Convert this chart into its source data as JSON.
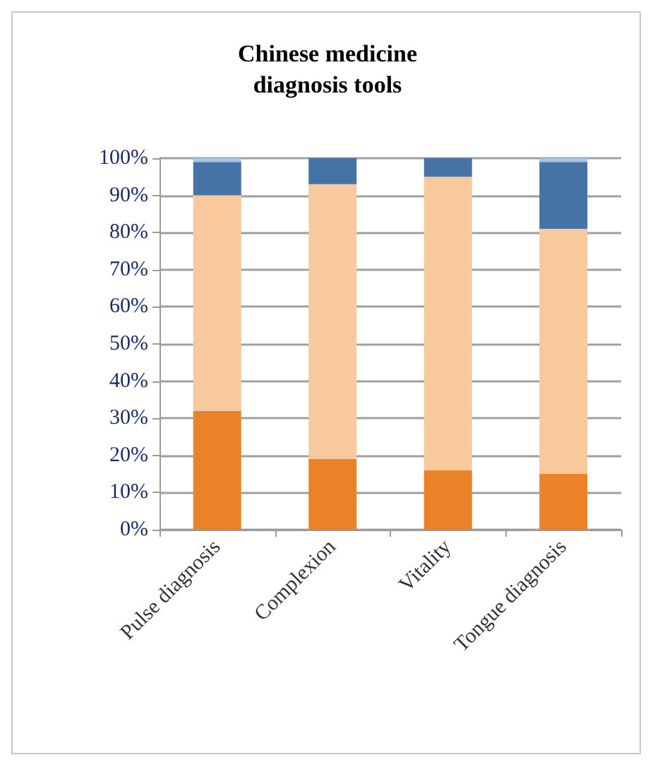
{
  "chart_data": {
    "type": "bar",
    "title": "Chinese medicine\ndiagnosis tools",
    "stacked": true,
    "categories": [
      "Pulse diagnosis",
      "Complexion",
      "Vitality",
      "Tongue diagnosis"
    ],
    "series": [
      {
        "color": "#eb8228",
        "values": [
          32,
          19,
          16,
          15
        ]
      },
      {
        "color": "#f7c99c",
        "values": [
          58,
          74,
          79,
          66
        ]
      },
      {
        "color": "#4573a5",
        "values": [
          9,
          7,
          5,
          18
        ]
      },
      {
        "color": "#a9c5e6",
        "values": [
          1,
          0,
          0,
          1
        ]
      }
    ],
    "ylim": [
      0,
      100
    ],
    "yticks": [
      {
        "value": 0,
        "label": "0%"
      },
      {
        "value": 10,
        "label": "10%"
      },
      {
        "value": 20,
        "label": "20%"
      },
      {
        "value": 30,
        "label": "30%"
      },
      {
        "value": 40,
        "label": "40%"
      },
      {
        "value": 50,
        "label": "50%"
      },
      {
        "value": 60,
        "label": "60%"
      },
      {
        "value": 70,
        "label": "70%"
      },
      {
        "value": 80,
        "label": "80%"
      },
      {
        "value": 90,
        "label": "90%"
      },
      {
        "value": 100,
        "label": "100%"
      }
    ],
    "grid": "y"
  }
}
